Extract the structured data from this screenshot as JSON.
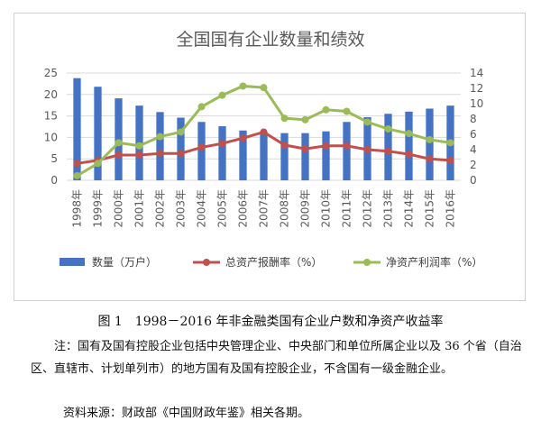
{
  "chart_data": {
    "type": "bar+line",
    "title": "全国国有企业数量和绩效",
    "categories": [
      "1998年",
      "1999年",
      "2000年",
      "2001年",
      "2002年",
      "2003年",
      "2004年",
      "2005年",
      "2006年",
      "2007年",
      "2008年",
      "2009年",
      "2010年",
      "2011年",
      "2012年",
      "2013年",
      "2014年",
      "2015年",
      "2016年"
    ],
    "left_axis": {
      "ylim": [
        0,
        25
      ],
      "ticks": [
        0,
        5,
        10,
        15,
        20,
        25
      ]
    },
    "right_axis": {
      "ylim": [
        0,
        14
      ],
      "ticks": [
        0,
        2,
        4,
        6,
        8,
        10,
        12,
        14
      ]
    },
    "series": [
      {
        "name": "数量（万户）",
        "kind": "bar",
        "axis": "left",
        "color": "#4472c4",
        "values": [
          23.8,
          21.8,
          19.1,
          17.4,
          15.9,
          14.6,
          13.6,
          12.6,
          11.6,
          11.2,
          11.0,
          11.0,
          11.4,
          13.6,
          14.7,
          15.5,
          16.0,
          16.7,
          17.4
        ]
      },
      {
        "name": "总资产报酬率（%）",
        "kind": "line",
        "axis": "right",
        "color": "#c0504d",
        "values": [
          2.2,
          2.6,
          3.3,
          3.3,
          3.5,
          3.5,
          4.3,
          4.8,
          5.5,
          6.3,
          4.6,
          4.1,
          4.5,
          4.5,
          4.0,
          3.8,
          3.4,
          2.8,
          2.6
        ]
      },
      {
        "name": "净资产利润率（%）",
        "kind": "line",
        "axis": "right",
        "color": "#9bbb59",
        "values": [
          0.6,
          2.2,
          4.9,
          4.5,
          5.7,
          6.3,
          9.6,
          11.1,
          12.3,
          12.1,
          8.1,
          7.9,
          9.2,
          9.0,
          7.6,
          6.7,
          6.1,
          5.3,
          4.9
        ]
      }
    ],
    "legend_position": "bottom",
    "grid": true
  },
  "caption": {
    "title": "图 1　1998－2016 年非金融类国有企业户数和净资产收益率",
    "note": "注：国有及国有控股企业包括中央管理企业、中央部门和单位所属企业以及 36 个省（自治区、直辖市、计划单列市）的地方国有及国有控股企业，不含国有一级金融企业。",
    "source": "资料来源：财政部《中国财政年鉴》相关各期。"
  }
}
